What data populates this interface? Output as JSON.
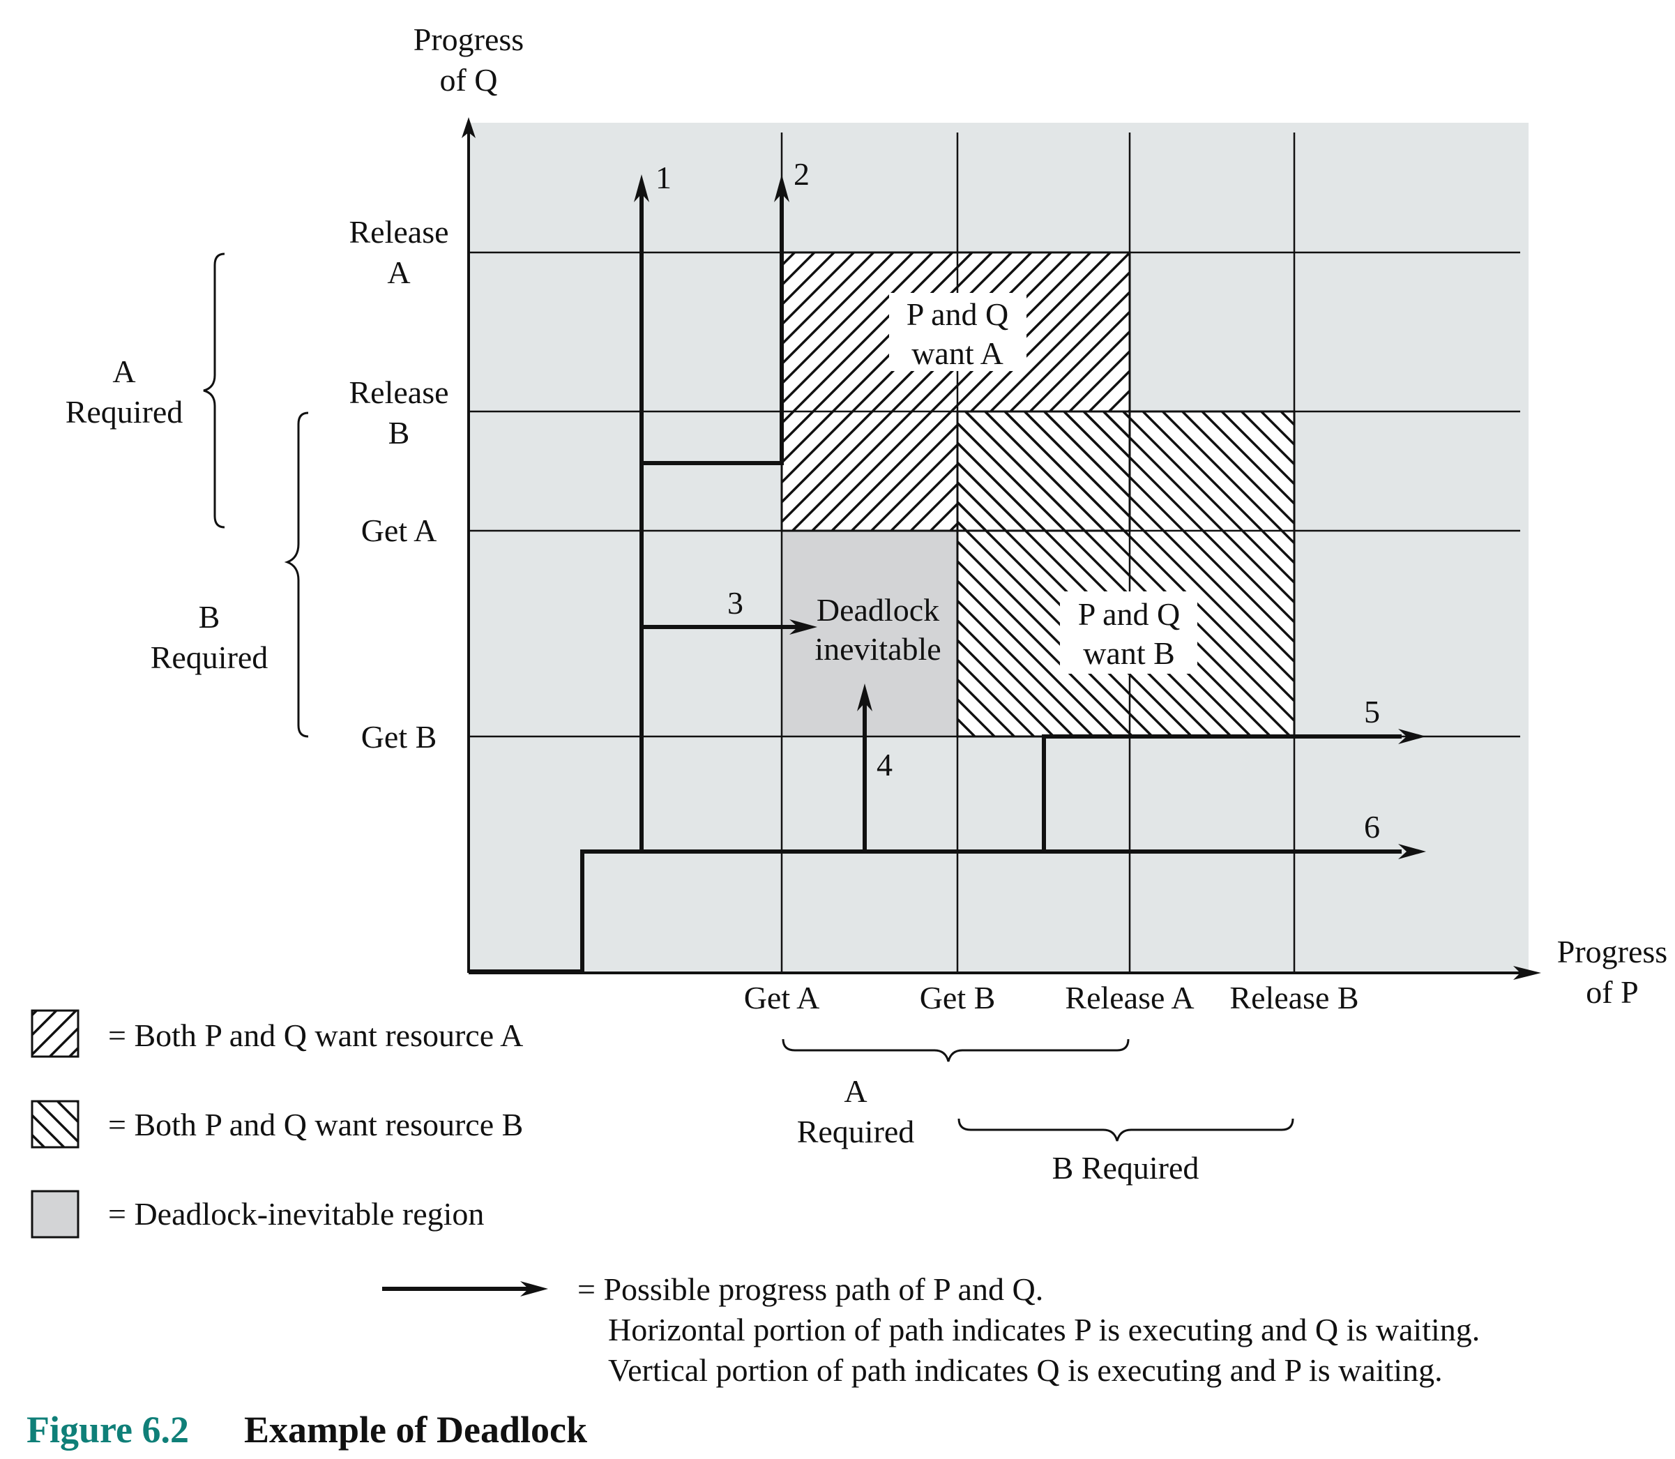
{
  "axes": {
    "y_title": [
      "Progress",
      "of Q"
    ],
    "x_title": [
      "Progress",
      "of P"
    ]
  },
  "y_ticks": [
    {
      "label": [
        "Release",
        "A"
      ]
    },
    {
      "label": [
        "Release",
        "B"
      ]
    },
    {
      "label": [
        "Get A"
      ]
    },
    {
      "label": [
        "Get B"
      ]
    }
  ],
  "x_ticks": [
    "Get A",
    "Get B",
    "Release A",
    "Release B"
  ],
  "braces": {
    "y_a": [
      "A",
      "Required"
    ],
    "y_b": [
      "B",
      "Required"
    ],
    "x_a": [
      "A",
      "Required"
    ],
    "x_b": "B Required"
  },
  "regions": {
    "both_want_a": [
      "P and Q",
      "want A"
    ],
    "both_want_b": [
      "P and Q",
      "want B"
    ],
    "deadlock": [
      "Deadlock",
      "inevitable"
    ]
  },
  "paths": [
    "1",
    "2",
    "3",
    "4",
    "5",
    "6"
  ],
  "legend": {
    "hatch_a": "= Both P and Q want resource A",
    "hatch_b": "= Both P and Q want resource B",
    "gray": "= Deadlock-inevitable region",
    "arrow_lines": [
      "= Possible progress path of P and Q.",
      "Horizontal portion of path indicates P is executing and Q is waiting.",
      "Vertical portion of path indicates Q is executing and P is waiting."
    ]
  },
  "caption": {
    "number": "Figure 6.2",
    "title": "Example of Deadlock"
  },
  "colors": {
    "plot_bg": "#e2e6e7",
    "deadlock_fill": "#d3d4d6",
    "caption_num": "#0f7f78",
    "ink": "#111111"
  }
}
